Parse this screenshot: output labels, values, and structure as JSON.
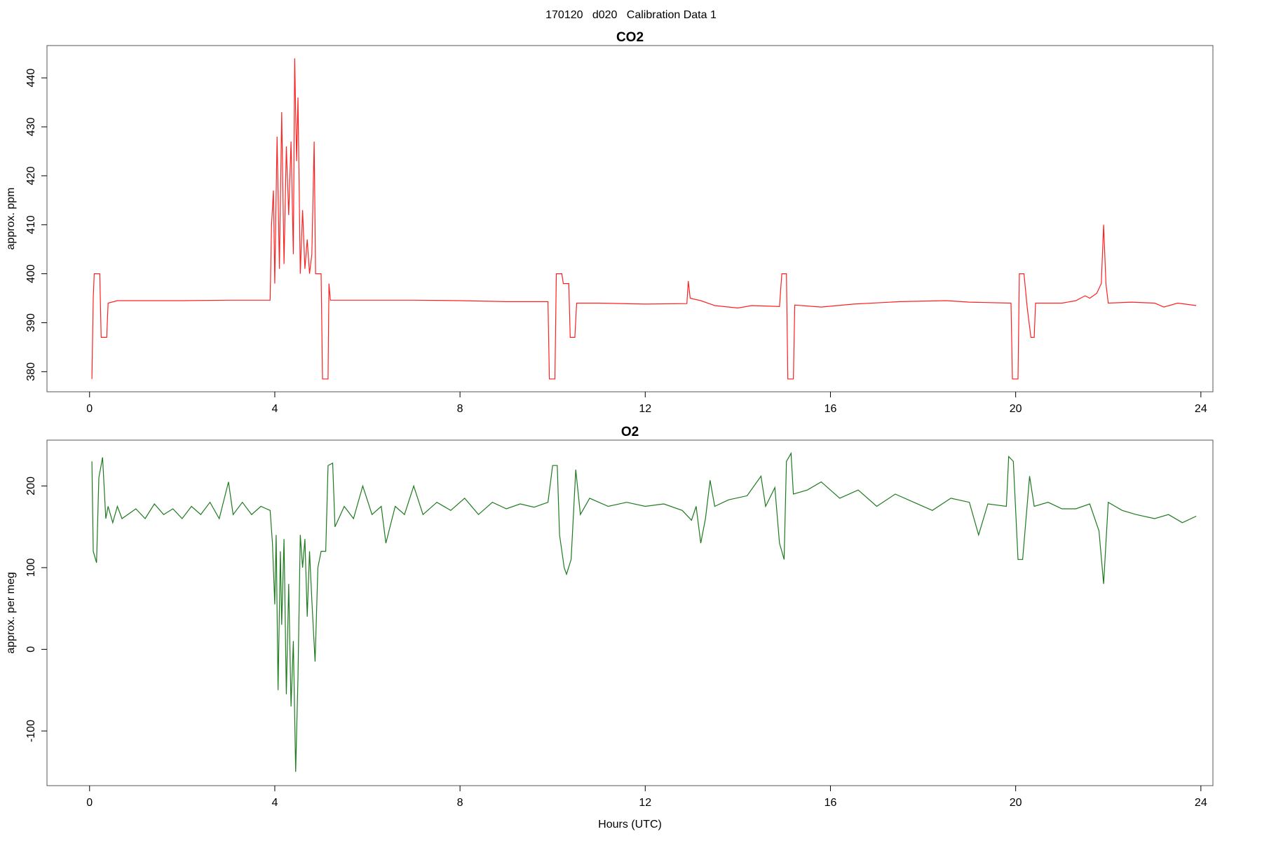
{
  "title": "170120   d020   Calibration Data 1",
  "chart_data": [
    {
      "type": "line",
      "title": "CO2",
      "ylabel": "approx. ppm",
      "color": "#ff2020",
      "xlim": [
        -0.92,
        24.26
      ],
      "xticks": [
        0,
        4,
        8,
        12,
        16,
        20,
        24
      ],
      "ylim": [
        375.9,
        446.6
      ],
      "yticks": [
        380,
        390,
        400,
        410,
        420,
        430,
        440
      ],
      "x": [
        0.05,
        0.08,
        0.1,
        0.22,
        0.25,
        0.37,
        0.4,
        0.6,
        1,
        2,
        3,
        3.9,
        3.93,
        3.97,
        4.0,
        4.05,
        4.1,
        4.15,
        4.2,
        4.25,
        4.3,
        4.35,
        4.4,
        4.43,
        4.47,
        4.5,
        4.55,
        4.6,
        4.65,
        4.7,
        4.75,
        4.8,
        4.85,
        4.88,
        5.0,
        5.03,
        5.15,
        5.17,
        5.2,
        6,
        7,
        8,
        9,
        9.9,
        9.93,
        10.05,
        10.08,
        10.2,
        10.23,
        10.35,
        10.38,
        10.48,
        10.52,
        11,
        12,
        12.9,
        12.93,
        12.97,
        13.2,
        13.5,
        14,
        14.3,
        14.9,
        14.95,
        15.05,
        15.08,
        15.2,
        15.23,
        15.8,
        16.5,
        17.5,
        18.5,
        19,
        19.9,
        19.93,
        20.05,
        20.08,
        20.18,
        20.25,
        20.33,
        20.4,
        20.43,
        21,
        21.3,
        21.5,
        21.6,
        21.75,
        21.85,
        21.9,
        21.95,
        22,
        22.5,
        23,
        23.2,
        23.5,
        23.9
      ],
      "values": [
        378.5,
        395,
        400,
        400,
        387,
        387,
        394,
        394.5,
        394.5,
        394.5,
        394.6,
        394.6,
        410,
        417,
        398,
        428,
        401,
        433,
        402,
        426,
        412,
        427,
        404,
        444,
        423,
        436,
        400,
        413,
        401,
        407,
        400,
        404,
        427,
        400,
        400,
        378.5,
        378.5,
        398,
        394.6,
        394.6,
        394.6,
        394.5,
        394.3,
        394.3,
        378.5,
        378.5,
        400,
        400,
        398,
        398,
        387,
        387,
        394,
        394,
        393.8,
        393.9,
        398.5,
        395,
        394.5,
        393.5,
        393,
        393.5,
        393.3,
        400,
        400,
        378.5,
        378.5,
        393.6,
        393.2,
        393.8,
        394.3,
        394.5,
        394.2,
        394,
        378.5,
        378.5,
        400,
        400,
        393,
        387,
        387,
        394,
        394,
        394.5,
        395.5,
        395,
        396,
        398,
        410,
        398,
        394,
        394.2,
        394,
        393.2,
        394,
        393.5
      ]
    },
    {
      "type": "line",
      "title": "O2",
      "ylabel": "approx. per meg",
      "xlabel": "Hours (UTC)",
      "color": "#1e7a1e",
      "xlim": [
        -0.92,
        24.26
      ],
      "xticks": [
        0,
        4,
        8,
        12,
        16,
        20,
        24
      ],
      "ylim": [
        -166.9,
        256.1
      ],
      "yticks": [
        -100,
        0,
        100,
        200
      ],
      "x": [
        0.05,
        0.08,
        0.15,
        0.2,
        0.28,
        0.35,
        0.4,
        0.5,
        0.6,
        0.7,
        1.0,
        1.2,
        1.4,
        1.6,
        1.8,
        2.0,
        2.2,
        2.4,
        2.6,
        2.8,
        3.0,
        3.1,
        3.3,
        3.5,
        3.7,
        3.9,
        3.95,
        4.0,
        4.03,
        4.07,
        4.12,
        4.15,
        4.2,
        4.25,
        4.3,
        4.35,
        4.4,
        4.45,
        4.5,
        4.55,
        4.6,
        4.65,
        4.7,
        4.75,
        4.8,
        4.87,
        4.93,
        5.0,
        5.1,
        5.15,
        5.25,
        5.3,
        5.5,
        5.7,
        5.9,
        6.1,
        6.3,
        6.4,
        6.6,
        6.8,
        7.0,
        7.2,
        7.5,
        7.8,
        8.1,
        8.4,
        8.7,
        9.0,
        9.3,
        9.6,
        9.9,
        10.0,
        10.1,
        10.15,
        10.25,
        10.3,
        10.4,
        10.5,
        10.6,
        10.8,
        11.2,
        11.6,
        12.0,
        12.4,
        12.8,
        13.0,
        13.1,
        13.2,
        13.3,
        13.4,
        13.5,
        13.8,
        14.2,
        14.5,
        14.6,
        14.8,
        14.9,
        15.0,
        15.05,
        15.15,
        15.2,
        15.5,
        15.8,
        16.2,
        16.6,
        17.0,
        17.4,
        17.8,
        18.2,
        18.6,
        19.0,
        19.2,
        19.4,
        19.8,
        19.85,
        19.95,
        20.05,
        20.15,
        20.3,
        20.4,
        20.7,
        21.0,
        21.3,
        21.6,
        21.8,
        21.9,
        22.0,
        22.3,
        22.6,
        23.0,
        23.3,
        23.6,
        23.9
      ],
      "values": [
        230,
        120,
        106,
        210,
        235,
        160,
        175,
        155,
        175,
        160,
        172,
        160,
        178,
        165,
        172,
        160,
        175,
        165,
        180,
        160,
        205,
        165,
        180,
        165,
        175,
        170,
        130,
        55,
        140,
        -50,
        120,
        30,
        135,
        -55,
        80,
        -70,
        10,
        -150,
        -35,
        140,
        100,
        135,
        40,
        120,
        60,
        -15,
        100,
        120,
        120,
        225,
        228,
        150,
        175,
        160,
        200,
        165,
        175,
        130,
        175,
        165,
        200,
        165,
        180,
        170,
        185,
        165,
        180,
        172,
        178,
        174,
        180,
        225,
        225,
        140,
        100,
        92,
        110,
        220,
        165,
        185,
        175,
        180,
        175,
        178,
        170,
        158,
        175,
        130,
        160,
        207,
        175,
        183,
        188,
        212,
        175,
        198,
        130,
        110,
        230,
        240,
        190,
        195,
        205,
        185,
        195,
        175,
        190,
        180,
        170,
        185,
        180,
        140,
        178,
        175,
        236,
        230,
        110,
        110,
        212,
        175,
        180,
        172,
        172,
        178,
        145,
        80,
        180,
        170,
        165,
        160,
        165,
        155,
        163
      ]
    }
  ]
}
